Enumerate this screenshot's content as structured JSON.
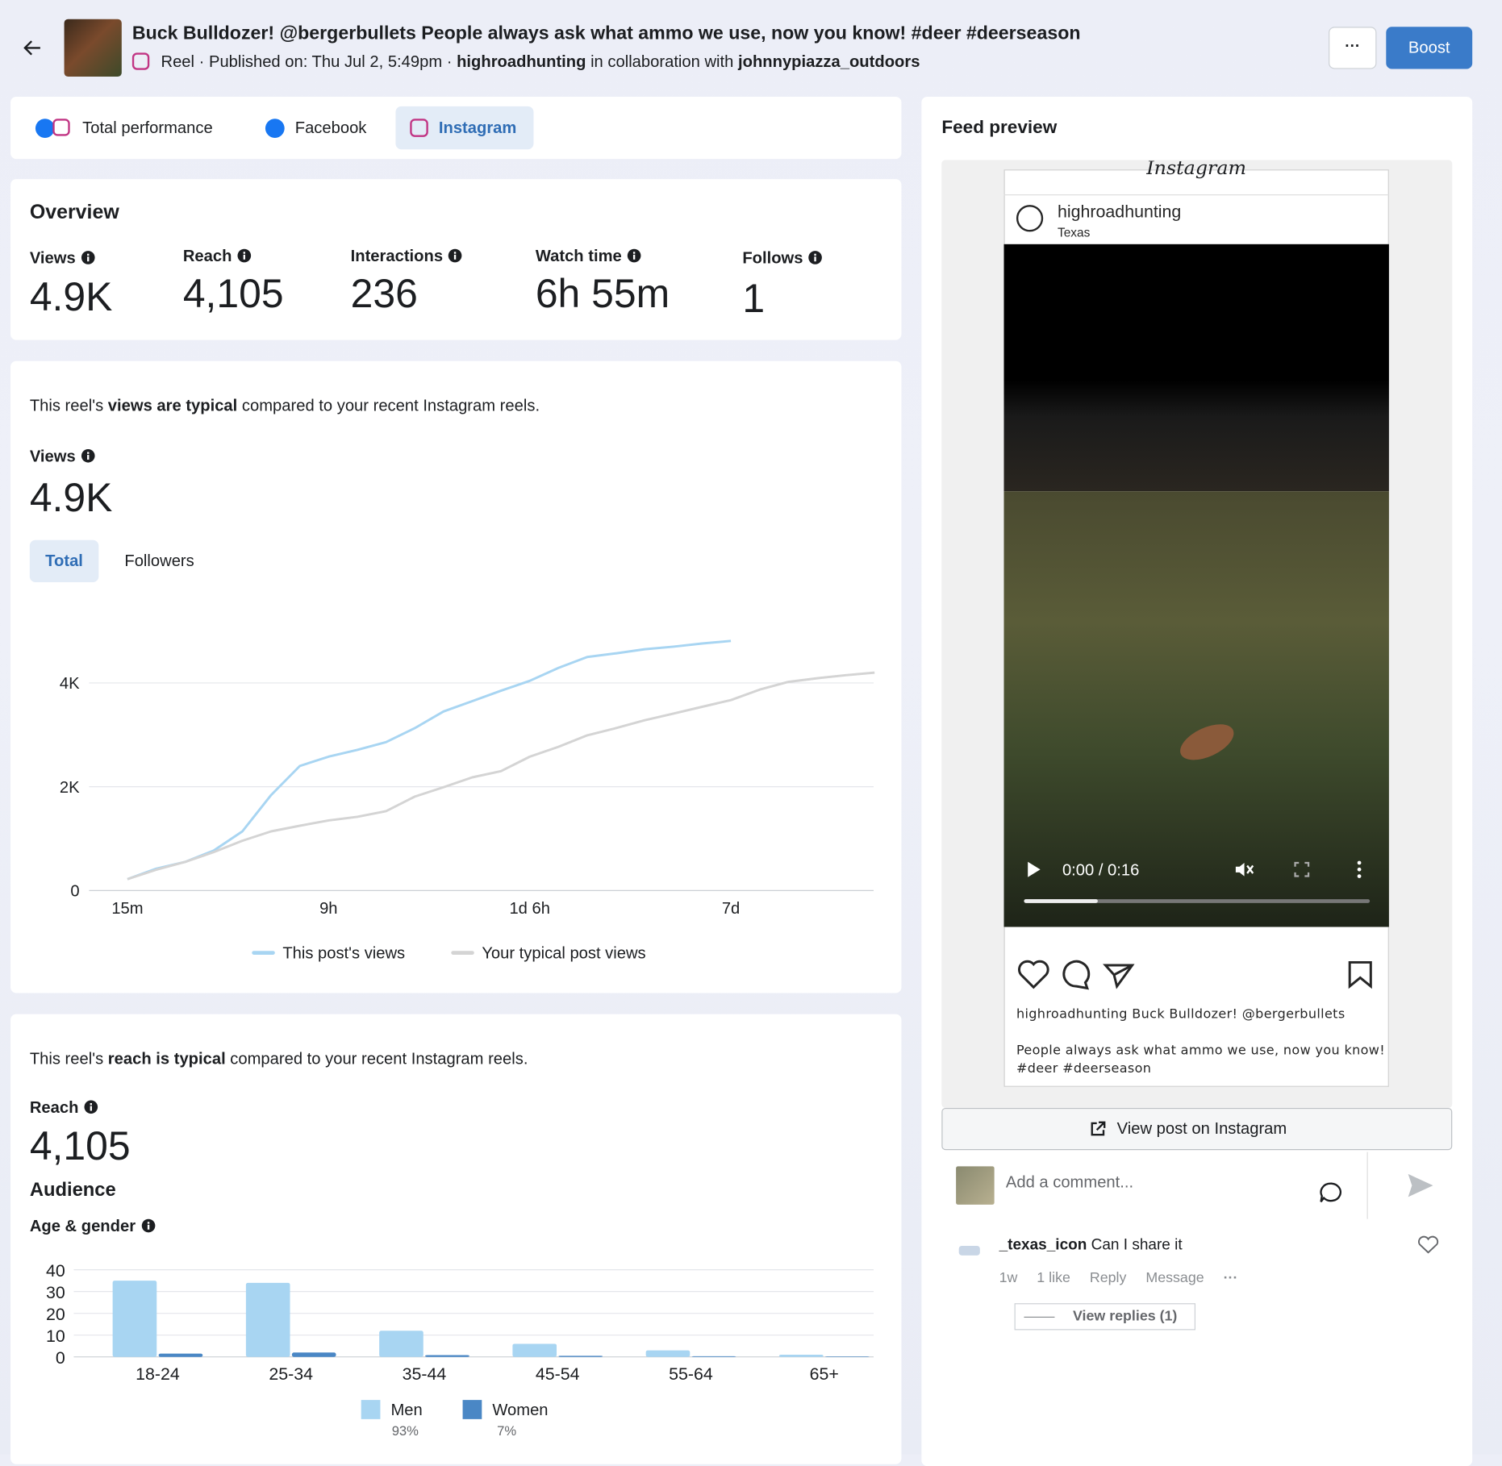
{
  "header": {
    "title": "Buck Bulldozer! @bergerbullets People always ask what ammo we use, now you know! #deer #deerseason",
    "type": "Reel",
    "published": "· Published on: Thu Jul 2, 5:49pm ·",
    "account": "highroadhunting",
    "collab_text": "in collaboration with",
    "collaborator": "johnnypiazza_outdoors",
    "more": "···",
    "boost": "Boost"
  },
  "tabs": [
    "Total performance",
    "Facebook",
    "Instagram"
  ],
  "overview": {
    "title": "Overview",
    "metrics": [
      {
        "label": "Views",
        "value": "4.9K"
      },
      {
        "label": "Reach",
        "value": "4,105"
      },
      {
        "label": "Interactions",
        "value": "236"
      },
      {
        "label": "Watch time",
        "value": "6h 55m"
      },
      {
        "label": "Follows",
        "value": "1"
      }
    ]
  },
  "views_section": {
    "sentence_pre": "This reel's",
    "sentence_bold": "views are typical",
    "sentence_post": "compared to your recent Instagram reels.",
    "metric_label": "Views",
    "metric_value": "4.9K",
    "toggles": [
      "Total",
      "Followers"
    ]
  },
  "reach_section": {
    "sentence_pre": "This reel's",
    "sentence_bold": "reach is typical",
    "sentence_post": "compared to your recent Instagram reels.",
    "metric_label": "Reach",
    "metric_value": "4,105",
    "audience": "Audience",
    "breakdown": "Age & gender"
  },
  "chart_data": [
    {
      "type": "line",
      "categories": [
        "15m",
        null,
        null,
        null,
        null,
        null,
        null,
        "9h",
        null,
        null,
        null,
        null,
        null,
        null,
        "1d 6h",
        null,
        null,
        null,
        null,
        null,
        null,
        "7d",
        null,
        null,
        null,
        null,
        null
      ],
      "series": [
        {
          "name": "This post's views",
          "color": "#a8d5f2",
          "values": [
            220,
            420,
            550,
            770,
            1140,
            1840,
            2400,
            2580,
            2710,
            2860,
            3130,
            3450,
            3650,
            3850,
            4040,
            4290,
            4500,
            4570,
            4650,
            4700,
            4760,
            4810,
            null,
            null,
            null,
            null,
            null
          ]
        },
        {
          "name": "Your typical post views",
          "color": "#d4d4d4",
          "values": [
            220,
            400,
            550,
            740,
            960,
            1140,
            1250,
            1350,
            1420,
            1530,
            1810,
            1990,
            2180,
            2300,
            2580,
            2770,
            2990,
            3130,
            3280,
            3410,
            3540,
            3670,
            3870,
            4020,
            4090,
            4150,
            4200
          ]
        }
      ],
      "ylim": [
        0,
        5000
      ],
      "yticks": [
        {
          "value": 0,
          "label": "0"
        },
        {
          "value": 2000,
          "label": "2K"
        },
        {
          "value": 4000,
          "label": "4K"
        }
      ],
      "grid": true
    },
    {
      "type": "bar",
      "categories": [
        "18-24",
        "25-34",
        "35-44",
        "45-54",
        "55-64",
        "65+"
      ],
      "series": [
        {
          "name": "Men",
          "share_label": "93%",
          "color": "#a8d5f2",
          "values": [
            35,
            34,
            12,
            6,
            3,
            1
          ]
        },
        {
          "name": "Women",
          "share_label": "7%",
          "color": "#4a87c5",
          "values": [
            1.5,
            2,
            0.8,
            0.5,
            0.3,
            0.2
          ]
        }
      ],
      "ylim": [
        0,
        40
      ],
      "yticks": [
        0,
        10,
        20,
        30,
        40
      ],
      "grid": true
    }
  ],
  "feed": {
    "title": "Feed preview",
    "instagram": "Instagram",
    "username": "highroadhunting",
    "location": "Texas",
    "time": "0:00 / 0:16",
    "caption_line1": "highroadhunting Buck Bulldozer! @bergerbullets",
    "caption_line2": "People always ask what ammo we use, now you know!",
    "caption_line3": "#deer #deerseason",
    "view_post": "View post on Instagram",
    "comment_placeholder": "Add a comment...",
    "comments": [
      {
        "user": "_texas_icon",
        "text": "Can I share it",
        "age": "1w",
        "likes": "1 like",
        "reply": "Reply",
        "message": "Message",
        "more": "···"
      }
    ],
    "view_replies": "View replies (1)"
  }
}
